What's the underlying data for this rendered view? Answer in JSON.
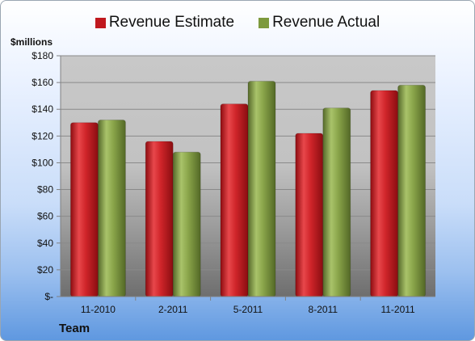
{
  "chart_data": {
    "type": "bar",
    "legend_position": "top",
    "categories": [
      "11-2010",
      "2-2011",
      "5-2011",
      "8-2011",
      "11-2011"
    ],
    "series": [
      {
        "name": "Revenue Estimate",
        "color": "#c0181e",
        "values": [
          130,
          116,
          144,
          122,
          154
        ]
      },
      {
        "name": "Revenue Actual",
        "color": "#7d9a3d",
        "values": [
          132,
          108,
          161,
          141,
          158
        ]
      }
    ],
    "ylim": [
      0,
      180
    ],
    "y_ticks": [
      0,
      20,
      40,
      60,
      80,
      100,
      120,
      140,
      160,
      180
    ],
    "y_tick_labels": [
      "$-",
      "$20",
      "$40",
      "$60",
      "$80",
      "$100",
      "$120",
      "$140",
      "$160",
      "$180"
    ],
    "ylabel": "$millions",
    "xlabel": "Team",
    "grid": true
  }
}
